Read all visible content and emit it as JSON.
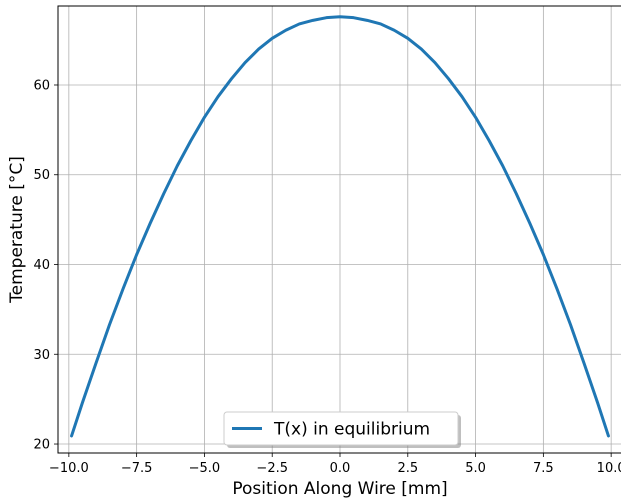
{
  "chart_data": {
    "type": "line",
    "title": "",
    "xlabel": "Position Along Wire [mm]",
    "ylabel": "Temperature [°C]",
    "xlim": [
      -10.4,
      10.4
    ],
    "ylim": [
      19.0,
      68.8
    ],
    "xticks": [
      -10.0,
      -7.5,
      -5.0,
      -2.5,
      0.0,
      2.5,
      5.0,
      7.5,
      10.0
    ],
    "xtick_labels": [
      "−10.0",
      "−7.5",
      "−5.0",
      "−2.5",
      "0.0",
      "2.5",
      "5.0",
      "7.5",
      "10.0"
    ],
    "yticks": [
      20,
      30,
      40,
      50,
      60
    ],
    "ytick_labels": [
      "20",
      "30",
      "40",
      "50",
      "60"
    ],
    "grid": true,
    "legend_position": "lower center",
    "series": [
      {
        "name": "T(x) in equilibrium",
        "color": "#1f77b4",
        "x": [
          -9.9,
          -9.5,
          -9.0,
          -8.5,
          -8.0,
          -7.5,
          -7.0,
          -6.5,
          -6.0,
          -5.5,
          -5.0,
          -4.5,
          -4.0,
          -3.5,
          -3.0,
          -2.5,
          -2.0,
          -1.5,
          -1.0,
          -0.5,
          0.0,
          0.5,
          1.0,
          1.5,
          2.0,
          2.5,
          3.0,
          3.5,
          4.0,
          4.5,
          5.0,
          5.5,
          6.0,
          6.5,
          7.0,
          7.5,
          8.0,
          8.5,
          9.0,
          9.5,
          9.9
        ],
        "y": [
          20.9,
          24.6,
          29.0,
          33.3,
          37.3,
          41.1,
          44.6,
          47.9,
          51.0,
          53.8,
          56.4,
          58.7,
          60.7,
          62.5,
          64.0,
          65.2,
          66.1,
          66.8,
          67.2,
          67.5,
          67.6,
          67.5,
          67.2,
          66.8,
          66.1,
          65.2,
          64.0,
          62.5,
          60.7,
          58.7,
          56.4,
          53.8,
          51.0,
          47.9,
          44.6,
          41.1,
          37.3,
          33.3,
          29.0,
          24.6,
          20.9
        ]
      }
    ]
  }
}
